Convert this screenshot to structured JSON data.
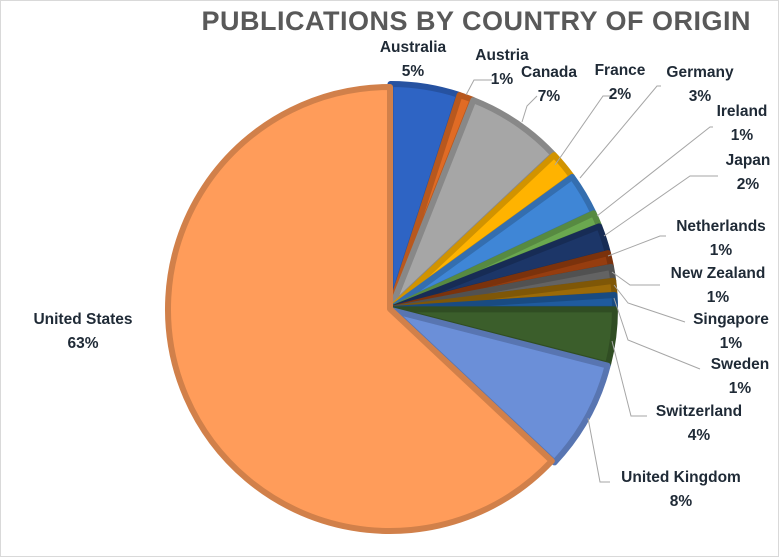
{
  "chart_data": {
    "type": "pie",
    "title": "PUBLICATIONS BY COUNTRY OF ORIGIN",
    "legend": "none",
    "slices": [
      {
        "label": "Australia",
        "value": 5,
        "pct_label": "5%",
        "color": "#2e64c4"
      },
      {
        "label": "Austria",
        "value": 1,
        "pct_label": "1%",
        "color": "#e06b25"
      },
      {
        "label": "Canada",
        "value": 7,
        "pct_label": "7%",
        "color": "#a6a6a6"
      },
      {
        "label": "France",
        "value": 2,
        "pct_label": "2%",
        "color": "#ffb300"
      },
      {
        "label": "Germany",
        "value": 3,
        "pct_label": "3%",
        "color": "#3f86d6"
      },
      {
        "label": "Ireland",
        "value": 1,
        "pct_label": "1%",
        "color": "#6aa84f"
      },
      {
        "label": "Japan",
        "value": 2,
        "pct_label": "2%",
        "color": "#1c3668"
      },
      {
        "label": "Netherlands",
        "value": 1,
        "pct_label": "1%",
        "color": "#963d0f"
      },
      {
        "label": "New Zealand",
        "value": 1,
        "pct_label": "1%",
        "color": "#636363"
      },
      {
        "label": "Singapore",
        "value": 1,
        "pct_label": "1%",
        "color": "#9b6a08"
      },
      {
        "label": "Sweden",
        "value": 1,
        "pct_label": "1%",
        "color": "#1f5b9e"
      },
      {
        "label": "Switzerland",
        "value": 4,
        "pct_label": "4%",
        "color": "#3b5e2b"
      },
      {
        "label": "United Kingdom",
        "value": 8,
        "pct_label": "8%",
        "color": "#6b8fd8"
      },
      {
        "label": "United States",
        "value": 63,
        "pct_label": "63%",
        "color": "#ff9c5a"
      }
    ]
  }
}
